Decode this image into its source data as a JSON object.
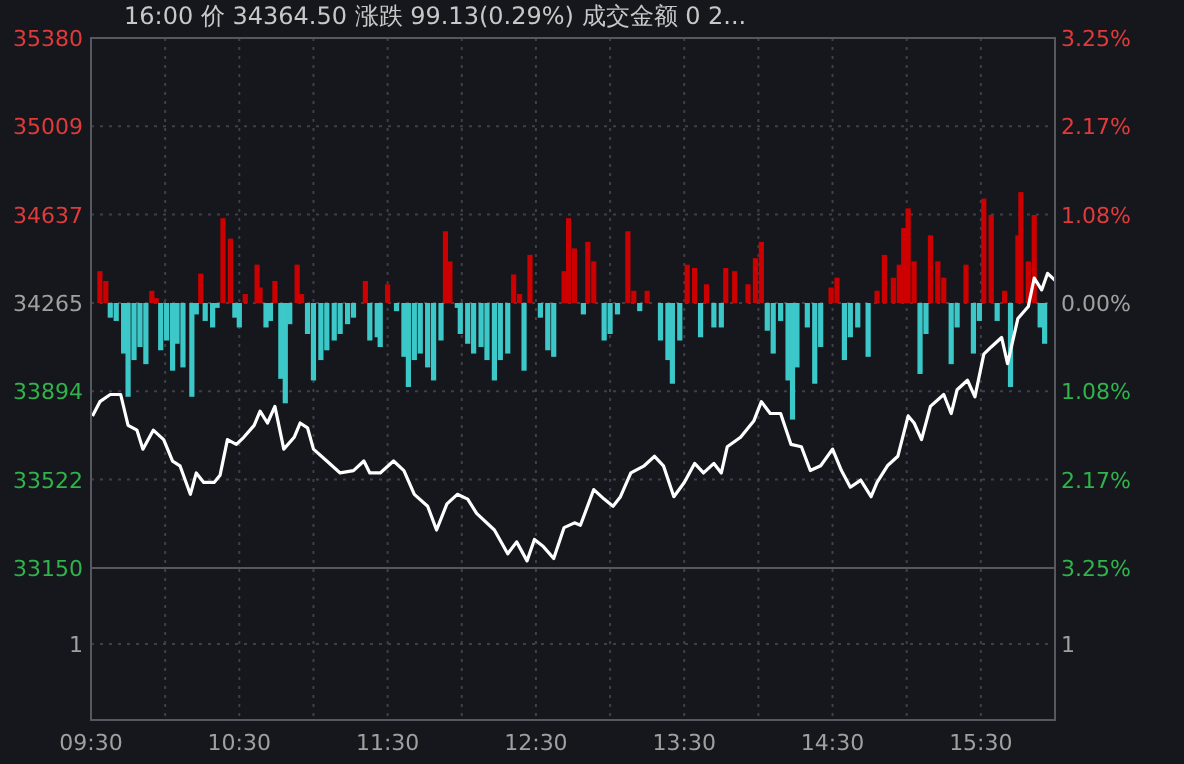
{
  "chart_data": [
    {
      "type": "line",
      "title": "16:00 价 34364.50 涨跌 99.13(0.29%) 成交金额 0 2...",
      "xlim": [
        9.5,
        16
      ],
      "xticks": [
        {
          "value": 9.5,
          "label": "09:30"
        },
        {
          "value": 10,
          "label": null
        },
        {
          "value": 10.5,
          "label": "10:30"
        },
        {
          "value": 11,
          "label": null
        },
        {
          "value": 11.5,
          "label": "11:30"
        },
        {
          "value": 12,
          "label": null
        },
        {
          "value": 12.5,
          "label": "12:30"
        },
        {
          "value": 13,
          "label": null
        },
        {
          "value": 13.5,
          "label": "13:30"
        },
        {
          "value": 14,
          "label": null
        },
        {
          "value": 14.5,
          "label": "14:30"
        },
        {
          "value": 15,
          "label": null
        },
        {
          "value": 15.5,
          "label": "15:30"
        },
        {
          "value": 16,
          "label": null
        }
      ],
      "ylim": [
        33150,
        35380
      ],
      "yticks": [
        33150,
        33522,
        33894,
        34265,
        34637,
        35009,
        35380
      ],
      "y2lim": [
        -3.25,
        3.25
      ],
      "y2ticks": [
        {
          "value": -3.25,
          "label": "3.25%"
        },
        {
          "value": -2.17,
          "label": "2.17%"
        },
        {
          "value": -1.08,
          "label": "1.08%"
        },
        {
          "value": 0,
          "label": "0.00%"
        },
        {
          "value": 1.08,
          "label": "1.08%"
        },
        {
          "value": 2.17,
          "label": "2.17%"
        },
        {
          "value": 3.25,
          "label": "3.25%"
        }
      ],
      "grid": true,
      "series": [
        {
          "type": "bar",
          "axis": "y2",
          "color": "#cc0000",
          "x": [
            9.56,
            9.6,
            9.91,
            9.94,
            10.24,
            10.39,
            10.44,
            10.54,
            10.62,
            10.64,
            10.74,
            10.89,
            10.92,
            11.35,
            11.5,
            11.89,
            11.92,
            12.35,
            12.39,
            12.46,
            12.69,
            12.72,
            12.76,
            12.85,
            12.89,
            13.12,
            13.16,
            13.25,
            13.52,
            13.57,
            13.65,
            13.78,
            13.84,
            13.93,
            13.98,
            14.02,
            14.49,
            14.53,
            14.8,
            14.85,
            14.91,
            14.95,
            14.98,
            15.01,
            15.05,
            15.16,
            15.21,
            15.25,
            15.4,
            15.52,
            15.57,
            15.66,
            15.75,
            15.77,
            15.82,
            15.86
          ],
          "values": [
            0.39,
            0.27,
            0.15,
            0.06,
            0.36,
            1.04,
            0.79,
            0.11,
            0.47,
            0.19,
            0.27,
            0.47,
            0.11,
            0.27,
            0.23,
            0.88,
            0.51,
            0.35,
            0.11,
            0.59,
            0.39,
            1.04,
            0.67,
            0.75,
            0.51,
            0.88,
            0.15,
            0.15,
            0.47,
            0.43,
            0.23,
            0.43,
            0.39,
            0.23,
            0.55,
            0.75,
            0.19,
            0.31,
            0.15,
            0.59,
            0.31,
            0.47,
            0.92,
            1.16,
            0.51,
            0.83,
            0.51,
            0.31,
            0.47,
            1.28,
            1.08,
            0.15,
            0.83,
            1.36,
            0.51,
            1.08
          ]
        },
        {
          "type": "bar",
          "axis": "y2",
          "color": "#3cc8c8",
          "x": [
            9.63,
            9.67,
            9.72,
            9.75,
            9.79,
            9.83,
            9.87,
            9.97,
            10.01,
            10.05,
            10.08,
            10.12,
            10.18,
            10.21,
            10.27,
            10.32,
            10.35,
            10.47,
            10.5,
            10.68,
            10.71,
            10.78,
            10.81,
            10.84,
            10.96,
            11.0,
            11.05,
            11.09,
            11.14,
            11.18,
            11.23,
            11.27,
            11.38,
            11.43,
            11.45,
            11.56,
            11.61,
            11.64,
            11.68,
            11.72,
            11.77,
            11.81,
            11.86,
            11.97,
            11.99,
            12.04,
            12.08,
            12.13,
            12.17,
            12.22,
            12.26,
            12.31,
            12.42,
            12.53,
            12.58,
            12.62,
            12.82,
            12.96,
            13.0,
            13.05,
            13.2,
            13.34,
            13.39,
            13.42,
            13.47,
            13.61,
            13.7,
            13.75,
            14.06,
            14.1,
            14.15,
            14.2,
            14.23,
            14.26,
            14.33,
            14.38,
            14.42,
            14.58,
            14.62,
            14.67,
            14.74,
            15.09,
            15.13,
            15.3,
            15.34,
            15.45,
            15.49,
            15.61,
            15.7,
            15.9,
            15.93
          ],
          "values": [
            -0.18,
            -0.22,
            -0.62,
            -1.15,
            -0.7,
            -0.54,
            -0.75,
            -0.58,
            -0.46,
            -0.83,
            -0.5,
            -0.79,
            -1.15,
            -0.14,
            -0.22,
            -0.3,
            -0.06,
            -0.18,
            -0.3,
            -0.3,
            -0.22,
            -0.93,
            -1.23,
            -0.26,
            -0.38,
            -0.95,
            -0.7,
            -0.58,
            -0.46,
            -0.38,
            -0.26,
            -0.18,
            -0.46,
            -0.42,
            -0.54,
            -0.1,
            -0.66,
            -1.03,
            -0.7,
            -0.62,
            -0.79,
            -0.95,
            -0.46,
            -0.06,
            -0.38,
            -0.5,
            -0.62,
            -0.54,
            -0.7,
            -0.95,
            -0.7,
            -0.62,
            -0.83,
            -0.18,
            -0.58,
            -0.66,
            -0.14,
            -0.46,
            -0.38,
            -0.14,
            -0.1,
            -0.46,
            -0.7,
            -0.99,
            -0.46,
            -0.42,
            -0.3,
            -0.3,
            -0.34,
            -0.62,
            -0.22,
            -0.95,
            -1.43,
            -0.79,
            -0.3,
            -0.99,
            -0.54,
            -0.7,
            -0.42,
            -0.3,
            -0.66,
            -0.87,
            -0.38,
            -0.75,
            -0.3,
            -0.62,
            -0.22,
            -0.22,
            -1.03,
            -0.3,
            -0.5
          ]
        },
        {
          "color": "#ffffff",
          "x": [
            9.51,
            9.56,
            9.63,
            9.7,
            9.75,
            9.81,
            9.85,
            9.92,
            9.99,
            10.05,
            10.1,
            10.17,
            10.21,
            10.26,
            10.33,
            10.37,
            10.42,
            10.48,
            10.53,
            10.6,
            10.64,
            10.69,
            10.74,
            10.8,
            10.87,
            10.91,
            10.96,
            11.0,
            11.09,
            11.18,
            11.27,
            11.34,
            11.38,
            11.45,
            11.54,
            11.61,
            11.68,
            11.77,
            11.83,
            11.9,
            11.97,
            12.04,
            12.1,
            12.22,
            12.31,
            12.37,
            12.44,
            12.49,
            12.55,
            12.62,
            12.69,
            12.76,
            12.8,
            12.89,
            12.96,
            13.02,
            13.07,
            13.14,
            13.23,
            13.3,
            13.36,
            13.43,
            13.5,
            13.57,
            13.63,
            13.7,
            13.75,
            13.79,
            13.88,
            13.97,
            14.02,
            14.08,
            14.15,
            14.22,
            14.29,
            14.35,
            14.42,
            14.5,
            14.56,
            14.62,
            14.69,
            14.76,
            14.8,
            14.87,
            14.94,
            15.01,
            15.05,
            15.1,
            15.16,
            15.25,
            15.3,
            15.34,
            15.41,
            15.46,
            15.52,
            15.57,
            15.64,
            15.68,
            15.75,
            15.82,
            15.86,
            15.91,
            15.95,
            16.0
          ],
          "values": [
            33790,
            33850,
            33880,
            33880,
            33750,
            33730,
            33650,
            33730,
            33690,
            33600,
            33580,
            33460,
            33550,
            33510,
            33510,
            33540,
            33690,
            33670,
            33700,
            33750,
            33810,
            33760,
            33830,
            33650,
            33700,
            33760,
            33740,
            33650,
            33600,
            33550,
            33560,
            33600,
            33550,
            33550,
            33600,
            33560,
            33460,
            33410,
            33310,
            33420,
            33460,
            33440,
            33380,
            33310,
            33210,
            33260,
            33180,
            33270,
            33240,
            33190,
            33320,
            33340,
            33330,
            33480,
            33440,
            33410,
            33450,
            33550,
            33580,
            33620,
            33580,
            33450,
            33510,
            33590,
            33550,
            33590,
            33550,
            33660,
            33700,
            33770,
            33850,
            33800,
            33800,
            33670,
            33660,
            33560,
            33580,
            33650,
            33560,
            33490,
            33520,
            33450,
            33510,
            33580,
            33620,
            33790,
            33760,
            33690,
            33830,
            33880,
            33800,
            33900,
            33940,
            33870,
            34050,
            34080,
            34120,
            34010,
            34200,
            34250,
            34370,
            34320,
            34390,
            34360
          ]
        }
      ]
    },
    {
      "type": "other",
      "annotations": [
        "1",
        "1"
      ]
    }
  ]
}
